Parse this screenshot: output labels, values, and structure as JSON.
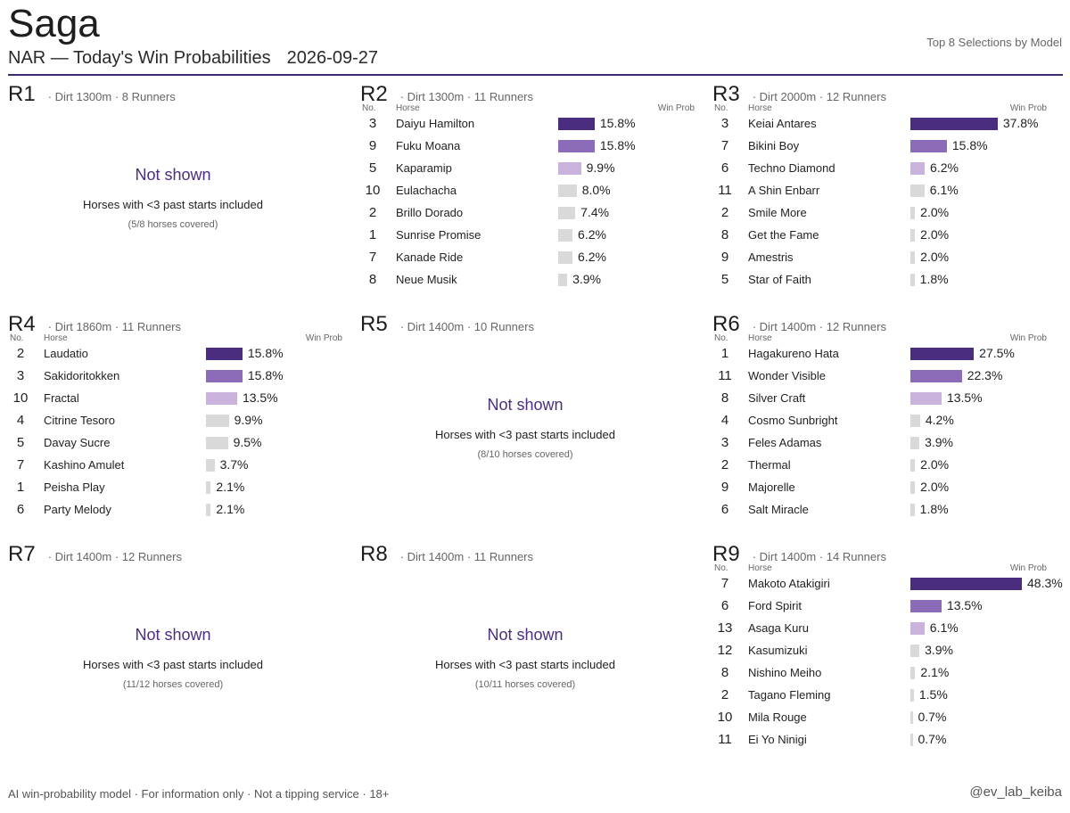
{
  "header": {
    "venue": "Saga",
    "subtitle": "NAR — Today's Win Probabilities",
    "date": "2026-09-27",
    "tagline": "Top 8 Selections by Model"
  },
  "labels": {
    "no": "No.",
    "horse": "Horse",
    "prob": "Win Prob"
  },
  "colors": {
    "rank1": "#4b2d7f",
    "rank2": "#8c6bb8",
    "rank3": "#c9b2dc",
    "other": "#d9d9d9",
    "accent": "#3c2a72"
  },
  "chart_data": {
    "type": "bar",
    "races": [
      {
        "name": "R1",
        "meta": "· Dirt 1300m · 8 Runners",
        "shown": false,
        "not_shown_title": "Not shown",
        "reason": "Horses with <3 past starts included",
        "coverage": "(5/8 horses covered)"
      },
      {
        "name": "R2",
        "meta": "· Dirt 1300m · 11 Runners",
        "shown": true,
        "entries": [
          {
            "no": "3",
            "horse": "Daiyu Hamilton",
            "prob": 15.8,
            "label": "15.8%"
          },
          {
            "no": "9",
            "horse": "Fuku Moana",
            "prob": 15.8,
            "label": "15.8%"
          },
          {
            "no": "5",
            "horse": "Kaparamip",
            "prob": 9.9,
            "label": "9.9%"
          },
          {
            "no": "10",
            "horse": "Eulachacha",
            "prob": 8.0,
            "label": "8.0%"
          },
          {
            "no": "2",
            "horse": "Brillo Dorado",
            "prob": 7.4,
            "label": "7.4%"
          },
          {
            "no": "1",
            "horse": "Sunrise Promise",
            "prob": 6.2,
            "label": "6.2%"
          },
          {
            "no": "7",
            "horse": "Kanade Ride",
            "prob": 6.2,
            "label": "6.2%"
          },
          {
            "no": "8",
            "horse": "Neue Musik",
            "prob": 3.9,
            "label": "3.9%"
          }
        ]
      },
      {
        "name": "R3",
        "meta": "· Dirt 2000m · 12 Runners",
        "shown": true,
        "entries": [
          {
            "no": "3",
            "horse": "Keiai Antares",
            "prob": 37.8,
            "label": "37.8%"
          },
          {
            "no": "7",
            "horse": "Bikini Boy",
            "prob": 15.8,
            "label": "15.8%"
          },
          {
            "no": "6",
            "horse": "Techno Diamond",
            "prob": 6.2,
            "label": "6.2%"
          },
          {
            "no": "11",
            "horse": "A Shin Enbarr",
            "prob": 6.1,
            "label": "6.1%"
          },
          {
            "no": "2",
            "horse": "Smile More",
            "prob": 2.0,
            "label": "2.0%"
          },
          {
            "no": "8",
            "horse": "Get the Fame",
            "prob": 2.0,
            "label": "2.0%"
          },
          {
            "no": "9",
            "horse": "Amestris",
            "prob": 2.0,
            "label": "2.0%"
          },
          {
            "no": "5",
            "horse": "Star of Faith",
            "prob": 1.8,
            "label": "1.8%"
          }
        ]
      },
      {
        "name": "R4",
        "meta": "· Dirt 1860m · 11 Runners",
        "shown": true,
        "entries": [
          {
            "no": "2",
            "horse": "Laudatio",
            "prob": 15.8,
            "label": "15.8%"
          },
          {
            "no": "3",
            "horse": "Sakidoritokken",
            "prob": 15.8,
            "label": "15.8%"
          },
          {
            "no": "10",
            "horse": "Fractal",
            "prob": 13.5,
            "label": "13.5%"
          },
          {
            "no": "4",
            "horse": "Citrine Tesoro",
            "prob": 9.9,
            "label": "9.9%"
          },
          {
            "no": "5",
            "horse": "Davay Sucre",
            "prob": 9.5,
            "label": "9.5%"
          },
          {
            "no": "7",
            "horse": "Kashino Amulet",
            "prob": 3.7,
            "label": "3.7%"
          },
          {
            "no": "1",
            "horse": "Peisha Play",
            "prob": 2.1,
            "label": "2.1%"
          },
          {
            "no": "6",
            "horse": "Party Melody",
            "prob": 2.1,
            "label": "2.1%"
          }
        ]
      },
      {
        "name": "R5",
        "meta": "· Dirt 1400m · 10 Runners",
        "shown": false,
        "not_shown_title": "Not shown",
        "reason": "Horses with <3 past starts included",
        "coverage": "(8/10 horses covered)"
      },
      {
        "name": "R6",
        "meta": "· Dirt 1400m · 12 Runners",
        "shown": true,
        "entries": [
          {
            "no": "1",
            "horse": "Hagakureno Hata",
            "prob": 27.5,
            "label": "27.5%"
          },
          {
            "no": "11",
            "horse": "Wonder Visible",
            "prob": 22.3,
            "label": "22.3%"
          },
          {
            "no": "8",
            "horse": "Silver Craft",
            "prob": 13.5,
            "label": "13.5%"
          },
          {
            "no": "4",
            "horse": "Cosmo Sunbright",
            "prob": 4.2,
            "label": "4.2%"
          },
          {
            "no": "3",
            "horse": "Feles Adamas",
            "prob": 3.9,
            "label": "3.9%"
          },
          {
            "no": "2",
            "horse": "Thermal",
            "prob": 2.0,
            "label": "2.0%"
          },
          {
            "no": "9",
            "horse": "Majorelle",
            "prob": 2.0,
            "label": "2.0%"
          },
          {
            "no": "6",
            "horse": "Salt Miracle",
            "prob": 1.8,
            "label": "1.8%"
          }
        ]
      },
      {
        "name": "R7",
        "meta": "· Dirt 1400m · 12 Runners",
        "shown": false,
        "not_shown_title": "Not shown",
        "reason": "Horses with <3 past starts included",
        "coverage": "(11/12 horses covered)"
      },
      {
        "name": "R8",
        "meta": "· Dirt 1400m · 11 Runners",
        "shown": false,
        "not_shown_title": "Not shown",
        "reason": "Horses with <3 past starts included",
        "coverage": "(10/11 horses covered)"
      },
      {
        "name": "R9",
        "meta": "· Dirt 1400m · 14 Runners",
        "shown": true,
        "entries": [
          {
            "no": "7",
            "horse": "Makoto Atakigiri",
            "prob": 48.3,
            "label": "48.3%"
          },
          {
            "no": "6",
            "horse": "Ford Spirit",
            "prob": 13.5,
            "label": "13.5%"
          },
          {
            "no": "13",
            "horse": "Asaga Kuru",
            "prob": 6.1,
            "label": "6.1%"
          },
          {
            "no": "12",
            "horse": "Kasumizuki",
            "prob": 3.9,
            "label": "3.9%"
          },
          {
            "no": "8",
            "horse": "Nishino Meiho",
            "prob": 2.1,
            "label": "2.1%"
          },
          {
            "no": "2",
            "horse": "Tagano Fleming",
            "prob": 1.5,
            "label": "1.5%"
          },
          {
            "no": "10",
            "horse": "Mila Rouge",
            "prob": 0.7,
            "label": "0.7%"
          },
          {
            "no": "11",
            "horse": "Ei Yo Ninigi",
            "prob": 0.7,
            "label": "0.7%"
          }
        ]
      }
    ]
  },
  "footer": {
    "disclaimer": "AI win-probability model · For information only · Not a tipping service · 18+",
    "handle": "@ev_lab_keiba"
  }
}
